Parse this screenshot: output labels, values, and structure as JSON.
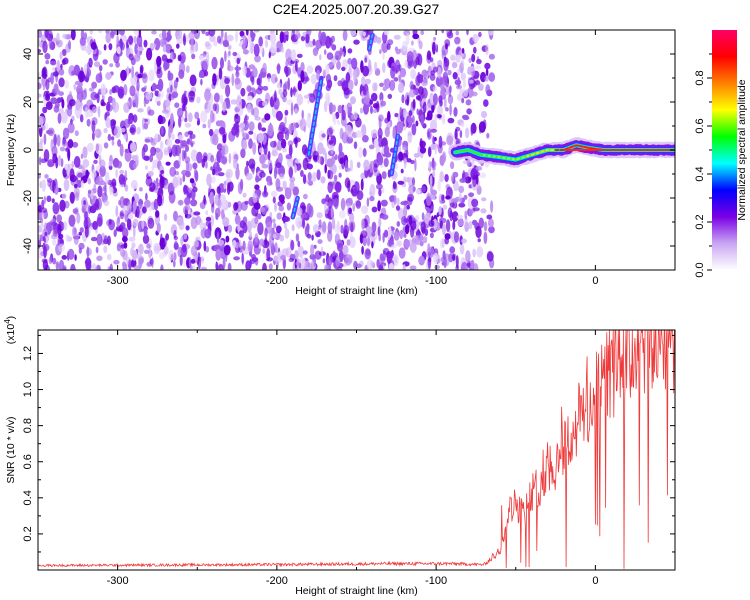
{
  "title": "C2E4.2025.007.20.39.G27",
  "chart_data": [
    {
      "type": "heatmap",
      "xlabel": "Height of straight line (km)",
      "ylabel": "Frequency (Hz)",
      "xlim": [
        -350,
        50
      ],
      "ylim": [
        -50,
        50
      ],
      "x_ticks": [
        -300,
        -200,
        -100,
        0
      ],
      "y_ticks": [
        -40,
        -20,
        0,
        20,
        40
      ],
      "noise_region_x": [
        -350,
        -65
      ],
      "signal_track": [
        [
          -88,
          -1
        ],
        [
          -80,
          0
        ],
        [
          -72,
          -2
        ],
        [
          -60,
          -3
        ],
        [
          -50,
          -4
        ],
        [
          -40,
          -2
        ],
        [
          -30,
          0
        ],
        [
          -20,
          0
        ],
        [
          -12,
          2
        ],
        [
          -5,
          1
        ],
        [
          5,
          0
        ],
        [
          20,
          0
        ],
        [
          50,
          0
        ]
      ],
      "streaks": [
        {
          "x": [
            -180,
            -172
          ],
          "y": [
            -2,
            30
          ]
        },
        {
          "x": [
            -128,
            -124
          ],
          "y": [
            -10,
            6
          ]
        },
        {
          "x": [
            -142,
            -140
          ],
          "y": [
            42,
            48
          ]
        },
        {
          "x": [
            -190,
            -187
          ],
          "y": [
            -28,
            -20
          ]
        }
      ],
      "colorbar": {
        "label": "Normalized spectral amplitude",
        "ticks": [
          "0.0",
          "0.2",
          "0.4",
          "0.6",
          "0.8"
        ],
        "range": [
          0,
          1
        ],
        "colors": [
          "#ffffff",
          "#c9a6f2",
          "#7a00e6",
          "#0000ff",
          "#00ffff",
          "#00ff00",
          "#ffff00",
          "#ff8000",
          "#ff0000",
          "#ff0066"
        ]
      }
    },
    {
      "type": "line",
      "xlabel": "Height of straight line (km)",
      "ylabel": "SNR (10 * v/v)",
      "y_multiplier": "(x10",
      "y_multiplier_exp": "4",
      "xlim": [
        -350,
        50
      ],
      "ylim": [
        0,
        1.33
      ],
      "x_ticks": [
        -300,
        -200,
        -100,
        0
      ],
      "y_ticks": [
        "0.2",
        "0.4",
        "0.6",
        "0.8",
        "1.0",
        "1.2"
      ],
      "color": "#f03a3a",
      "envelope": [
        [
          -350,
          0.025
        ],
        [
          -200,
          0.03
        ],
        [
          -130,
          0.035
        ],
        [
          -90,
          0.035
        ],
        [
          -70,
          0.03
        ],
        [
          -60,
          0.1
        ],
        [
          -55,
          0.3
        ],
        [
          -50,
          0.35
        ],
        [
          -45,
          0.3
        ],
        [
          -40,
          0.4
        ],
        [
          -35,
          0.45
        ],
        [
          -30,
          0.55
        ],
        [
          -25,
          0.55
        ],
        [
          -20,
          0.65
        ],
        [
          -15,
          0.7
        ],
        [
          -10,
          0.8
        ],
        [
          -5,
          0.85
        ],
        [
          0,
          0.9
        ],
        [
          5,
          1.0
        ],
        [
          10,
          1.05
        ],
        [
          15,
          1.1
        ],
        [
          20,
          1.15
        ],
        [
          30,
          1.2
        ],
        [
          40,
          1.22
        ],
        [
          50,
          1.25
        ]
      ]
    }
  ]
}
